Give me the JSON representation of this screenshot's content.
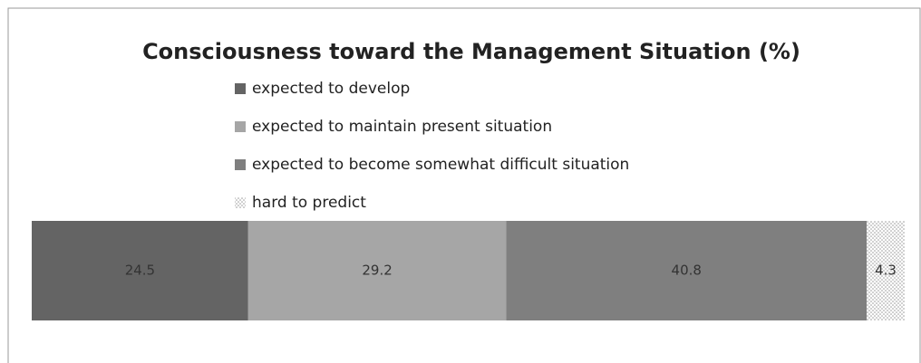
{
  "chart_data": {
    "type": "bar",
    "orientation": "horizontal",
    "stacked": true,
    "title": "Consciousness toward the Management Situation (%)",
    "categories": [
      null
    ],
    "xlim": [
      0,
      98.8
    ],
    "series": [
      {
        "name": "expected to develop",
        "color": "#646464",
        "values": [
          24.5
        ]
      },
      {
        "name": "expected to maintain present situation",
        "color": "#a6a6a6",
        "values": [
          29.2
        ]
      },
      {
        "name": "expected to become somewhat difficult situation",
        "color": "#7f7f7f",
        "values": [
          40.8
        ]
      },
      {
        "name": "hard to predict",
        "color": "#9a9a9a",
        "pattern": "dots",
        "values": [
          4.3
        ]
      }
    ],
    "legend": "top"
  }
}
